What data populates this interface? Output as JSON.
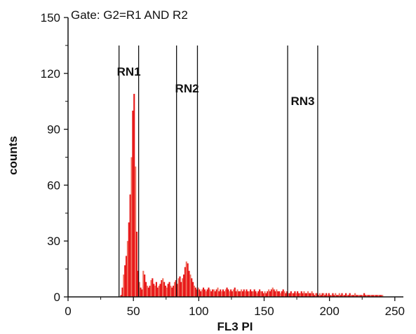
{
  "chart_data": {
    "type": "bar",
    "gate_text": "Gate: G2=R1 AND R2",
    "xlabel": "FL3 PI",
    "ylabel": "counts",
    "xlim": [
      0,
      256
    ],
    "ylim": [
      0,
      150
    ],
    "x_ticks": [
      {
        "value": 0,
        "label": "0"
      },
      {
        "value": 50,
        "label": "50"
      },
      {
        "value": 100,
        "label": "100"
      },
      {
        "value": 150,
        "label": "150"
      },
      {
        "value": 200,
        "label": "200"
      },
      {
        "value": 250,
        "label": "250"
      }
    ],
    "y_ticks": [
      {
        "value": 0,
        "label": "0"
      },
      {
        "value": 30,
        "label": "30"
      },
      {
        "value": 60,
        "label": "60"
      },
      {
        "value": 90,
        "label": "90"
      },
      {
        "value": 120,
        "label": "120"
      },
      {
        "value": 150,
        "label": "150"
      }
    ],
    "regions": [
      {
        "name": "RN1",
        "start": 39,
        "end": 54
      },
      {
        "name": "RN2",
        "start": 83,
        "end": 99
      },
      {
        "name": "RN3",
        "start": 168,
        "end": 191
      }
    ],
    "bar_color": "#e8191a",
    "bar_color_light": "#f07060",
    "histogram": {
      "x_start": 40,
      "counts": [
        1,
        5,
        12,
        17,
        22,
        30,
        40,
        55,
        75,
        100,
        109,
        70,
        35,
        14,
        8,
        5,
        4,
        14,
        12,
        8,
        6,
        5,
        6,
        9,
        10,
        7,
        6,
        8,
        5,
        6,
        7,
        9,
        10,
        8,
        6,
        5,
        7,
        8,
        6,
        5,
        6,
        8,
        9,
        7,
        10,
        11,
        8,
        10,
        12,
        16,
        19,
        18,
        14,
        12,
        10,
        8,
        6,
        5,
        4,
        5,
        4,
        3,
        4,
        5,
        4,
        3,
        4,
        5,
        4,
        3,
        4,
        4,
        3,
        4,
        5,
        3,
        4,
        3,
        4,
        3,
        4,
        5,
        4,
        3,
        4,
        3,
        4,
        5,
        3,
        4,
        3,
        3,
        4,
        3,
        4,
        3,
        4,
        3,
        3,
        4,
        3,
        3,
        4,
        3,
        2,
        3,
        4,
        3,
        3,
        2,
        3,
        2,
        3,
        4,
        3,
        4,
        5,
        4,
        3,
        4,
        3,
        3,
        2,
        3,
        4,
        3,
        2,
        3,
        2,
        2,
        3,
        2,
        2,
        3,
        2,
        3,
        2,
        2,
        3,
        2,
        3,
        2,
        2,
        3,
        2,
        2,
        3,
        2,
        1,
        2,
        2,
        1,
        2,
        1,
        2,
        2,
        1,
        2,
        1,
        2,
        1,
        1,
        2,
        1,
        2,
        1,
        1,
        2,
        1,
        2,
        1,
        1,
        2,
        1,
        1,
        2,
        1,
        1,
        1,
        2,
        1,
        1,
        1,
        1,
        1,
        1,
        2,
        1,
        1,
        1,
        1,
        1,
        1,
        1,
        1,
        1,
        1,
        1,
        1,
        1,
        1
      ]
    }
  }
}
